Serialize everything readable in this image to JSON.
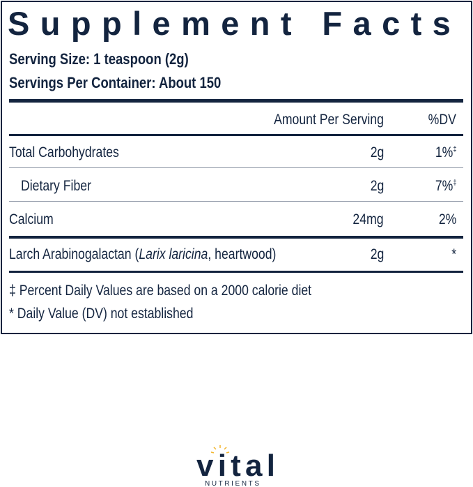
{
  "title": "Supplement Facts",
  "serving_size": "Serving Size: 1 teaspoon (2g)",
  "servings_per_container": "Servings Per Container: About 150",
  "header": {
    "amount": "Amount Per Serving",
    "dv": "%DV"
  },
  "rows": [
    {
      "name": "Total Carbohydrates",
      "amount": "2g",
      "dv": "1%",
      "mark": "‡"
    },
    {
      "name": "Dietary Fiber",
      "amount": "2g",
      "dv": "7%",
      "mark": "‡"
    },
    {
      "name": "Calcium",
      "amount": "24mg",
      "dv": "2%"
    },
    {
      "name_pre": "Larch Arabinogalactan (",
      "name_italic": "Larix laricina",
      "name_post": ", heartwood)",
      "amount": "2g",
      "dv": "*"
    }
  ],
  "footnotes": [
    "‡ Percent Daily Values are based on a 2000 calorie diet",
    "* Daily Value (DV) not established"
  ],
  "logo": {
    "brand": "vital",
    "tagline": "NUTRIENTS",
    "colors": {
      "navy": "#13243f",
      "sun": "#f2b630"
    }
  }
}
